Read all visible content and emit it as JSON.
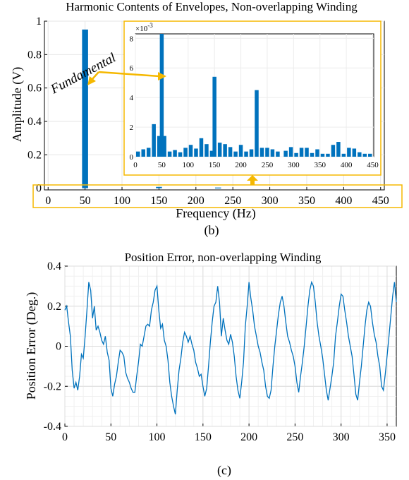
{
  "chart_data": [
    {
      "type": "bar",
      "title": "Harmonic Contents of Envelopes, Non-overlapping Winding",
      "xlabel": "Frequency (Hz)",
      "ylabel": "Amplitude (V)",
      "xlim": [
        -5,
        455
      ],
      "ylim": [
        -0.01,
        1.0
      ],
      "xticks": [
        "0",
        "50",
        "100",
        "150",
        "200",
        "250",
        "300",
        "350",
        "400",
        "450"
      ],
      "yticks": [
        "0.2",
        "0.4",
        "0.6",
        "0.8",
        "1"
      ],
      "x": [
        50,
        150,
        230
      ],
      "values": [
        0.95,
        0.008,
        0.004
      ],
      "annotation": "Fundamental",
      "caption": "(b)",
      "color": "#0072BD",
      "highlight_color": "#F5B800",
      "inset": {
        "type": "bar",
        "exponent_label": "×10",
        "exponent_power": "-3",
        "xlim": [
          0,
          452
        ],
        "ylim": [
          0,
          8.3
        ],
        "xticks": [
          "0",
          "50",
          "100",
          "150",
          "200",
          "250",
          "300",
          "350",
          "400",
          "450"
        ],
        "yticks": [
          "0",
          "2",
          "4",
          "6",
          "8"
        ],
        "x": [
          5,
          15,
          25,
          35,
          45,
          50,
          55,
          65,
          75,
          85,
          95,
          105,
          115,
          125,
          135,
          145,
          150,
          160,
          170,
          180,
          190,
          200,
          210,
          220,
          230,
          240,
          250,
          260,
          270,
          285,
          295,
          305,
          315,
          325,
          335,
          345,
          355,
          365,
          375,
          385,
          395,
          405,
          415,
          425,
          435,
          445
        ],
        "values": [
          0.35,
          0.5,
          0.6,
          2.2,
          1.4,
          8.3,
          1.4,
          0.35,
          0.45,
          0.3,
          0.6,
          0.8,
          0.55,
          1.25,
          0.85,
          0.4,
          5.4,
          0.95,
          0.85,
          0.65,
          0.35,
          0.8,
          0.35,
          0.5,
          4.5,
          0.6,
          0.6,
          0.5,
          0.35,
          0.4,
          0.65,
          0.25,
          0.6,
          0.6,
          0.25,
          0.5,
          0.2,
          0.2,
          0.8,
          1.0,
          0.2,
          0.6,
          0.55,
          0.3,
          0.2,
          0.2
        ]
      }
    },
    {
      "type": "line",
      "title": "Position Error, non-overlapping Winding",
      "xlabel": "",
      "ylabel": "Position Error (Deg.)",
      "xlim": [
        0,
        360
      ],
      "ylim": [
        -0.4,
        0.4
      ],
      "xticks": [
        "0",
        "50",
        "100",
        "150",
        "200",
        "250",
        "300",
        "350"
      ],
      "yticks": [
        "0.4",
        "0.2",
        "0",
        "-0.2",
        "-0.4"
      ],
      "color": "#0072BD",
      "caption": "(c)",
      "x": [
        0,
        2,
        4,
        6,
        8,
        10,
        12,
        14,
        16,
        18,
        20,
        22,
        24,
        26,
        28,
        30,
        32,
        34,
        36,
        38,
        40,
        42,
        44,
        46,
        48,
        50,
        52,
        54,
        56,
        58,
        60,
        62,
        64,
        66,
        68,
        70,
        72,
        74,
        76,
        78,
        80,
        82,
        84,
        86,
        88,
        90,
        92,
        94,
        96,
        98,
        100,
        102,
        104,
        106,
        108,
        110,
        112,
        114,
        116,
        118,
        120,
        122,
        124,
        126,
        128,
        130,
        132,
        134,
        136,
        138,
        140,
        142,
        144,
        146,
        148,
        150,
        152,
        154,
        156,
        158,
        160,
        162,
        164,
        166,
        168,
        170,
        172,
        174,
        176,
        178,
        180,
        182,
        184,
        186,
        188,
        190,
        192,
        194,
        196,
        198,
        200,
        202,
        204,
        206,
        208,
        210,
        212,
        214,
        216,
        218,
        220,
        222,
        224,
        226,
        228,
        230,
        232,
        234,
        236,
        238,
        240,
        242,
        244,
        246,
        248,
        250,
        252,
        254,
        256,
        258,
        260,
        262,
        264,
        266,
        268,
        270,
        272,
        274,
        276,
        278,
        280,
        282,
        284,
        286,
        288,
        290,
        292,
        294,
        296,
        298,
        300,
        302,
        304,
        306,
        308,
        310,
        312,
        314,
        316,
        318,
        320,
        322,
        324,
        326,
        328,
        330,
        332,
        334,
        336,
        338,
        340,
        342,
        344,
        346,
        348,
        350,
        352,
        354,
        356,
        358,
        360
      ],
      "y": [
        0.18,
        0.2,
        0.12,
        0.05,
        -0.12,
        -0.21,
        -0.18,
        -0.22,
        -0.15,
        -0.04,
        -0.06,
        0.05,
        0.18,
        0.32,
        0.28,
        0.14,
        0.2,
        0.08,
        0.1,
        0.07,
        0.03,
        0.01,
        0.05,
        -0.03,
        -0.07,
        -0.21,
        -0.25,
        -0.19,
        -0.15,
        -0.08,
        -0.02,
        -0.03,
        -0.05,
        -0.13,
        -0.16,
        -0.18,
        -0.21,
        -0.23,
        -0.23,
        -0.15,
        -0.08,
        0.01,
        0.0,
        0.05,
        0.1,
        0.11,
        0.1,
        0.18,
        0.22,
        0.28,
        0.3,
        0.18,
        0.09,
        0.11,
        0.03,
        0.0,
        -0.07,
        -0.18,
        -0.25,
        -0.3,
        -0.34,
        -0.22,
        -0.12,
        -0.06,
        0.02,
        0.07,
        0.05,
        0.02,
        0.05,
        0.01,
        -0.02,
        -0.08,
        -0.11,
        -0.15,
        -0.14,
        -0.2,
        -0.25,
        -0.21,
        -0.1,
        0.02,
        0.12,
        0.2,
        0.22,
        0.3,
        0.22,
        0.05,
        0.14,
        0.08,
        0.03,
        0.01,
        0.06,
        0.02,
        -0.05,
        -0.15,
        -0.22,
        -0.26,
        -0.18,
        -0.08,
        0.1,
        0.2,
        0.32,
        0.24,
        0.18,
        0.1,
        0.05,
        0.0,
        -0.03,
        -0.08,
        -0.12,
        -0.2,
        -0.25,
        -0.26,
        -0.22,
        -0.1,
        0.0,
        0.08,
        0.16,
        0.22,
        0.25,
        0.2,
        0.12,
        0.05,
        0.02,
        -0.02,
        -0.05,
        -0.1,
        -0.18,
        -0.23,
        -0.15,
        -0.08,
        0.0,
        0.1,
        0.2,
        0.28,
        0.32,
        0.3,
        0.22,
        0.12,
        0.05,
        0.0,
        -0.06,
        -0.14,
        -0.22,
        -0.27,
        -0.21,
        -0.15,
        -0.08,
        0.05,
        0.12,
        0.2,
        0.26,
        0.25,
        0.18,
        0.12,
        0.05,
        0.0,
        -0.05,
        -0.14,
        -0.24,
        -0.27,
        -0.18,
        -0.1,
        0.0,
        0.1,
        0.18,
        0.22,
        0.2,
        0.12,
        0.06,
        0.02,
        -0.05,
        -0.1,
        -0.2,
        -0.22,
        -0.14,
        -0.05,
        0.05,
        0.15,
        0.25,
        0.32,
        0.22
      ]
    }
  ]
}
